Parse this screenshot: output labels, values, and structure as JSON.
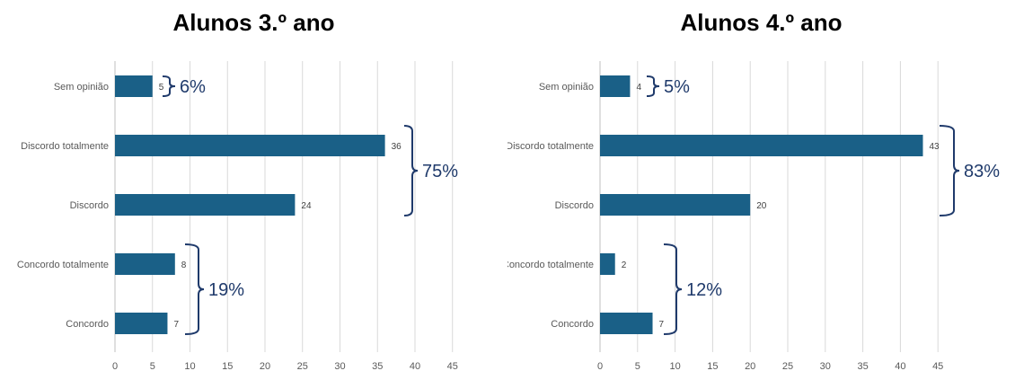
{
  "chart_data": [
    {
      "type": "bar",
      "orientation": "horizontal",
      "title": "Alunos 3.º ano",
      "categories": [
        "Sem opinião",
        "Discordo totalmente",
        "Discordo",
        "Concordo totalmente",
        "Concordo"
      ],
      "values": [
        5,
        36,
        24,
        8,
        7
      ],
      "xlim": [
        0,
        45
      ],
      "xticks": [
        0,
        5,
        10,
        15,
        20,
        25,
        30,
        35,
        40,
        45
      ],
      "grid": "vertical",
      "bar_color": "#1a6087",
      "annotations": [
        {
          "label": "6%",
          "categories": [
            "Sem opinião"
          ]
        },
        {
          "label": "75%",
          "categories": [
            "Discordo totalmente",
            "Discordo"
          ]
        },
        {
          "label": "19%",
          "categories": [
            "Concordo totalmente",
            "Concordo"
          ]
        }
      ]
    },
    {
      "type": "bar",
      "orientation": "horizontal",
      "title": "Alunos 4.º ano",
      "categories": [
        "Sem opinião",
        "Discordo totalmente",
        "Discordo",
        "Concordo totalmente",
        "Concordo"
      ],
      "values": [
        4,
        43,
        20,
        2,
        7
      ],
      "xlim": [
        0,
        45
      ],
      "xticks": [
        0,
        5,
        10,
        15,
        20,
        25,
        30,
        35,
        40,
        45
      ],
      "grid": "vertical",
      "bar_color": "#1a6087",
      "annotations": [
        {
          "label": "5%",
          "categories": [
            "Sem opinião"
          ]
        },
        {
          "label": "83%",
          "categories": [
            "Discordo totalmente",
            "Discordo"
          ]
        },
        {
          "label": "12%",
          "categories": [
            "Concordo totalmente",
            "Concordo"
          ]
        }
      ]
    }
  ]
}
